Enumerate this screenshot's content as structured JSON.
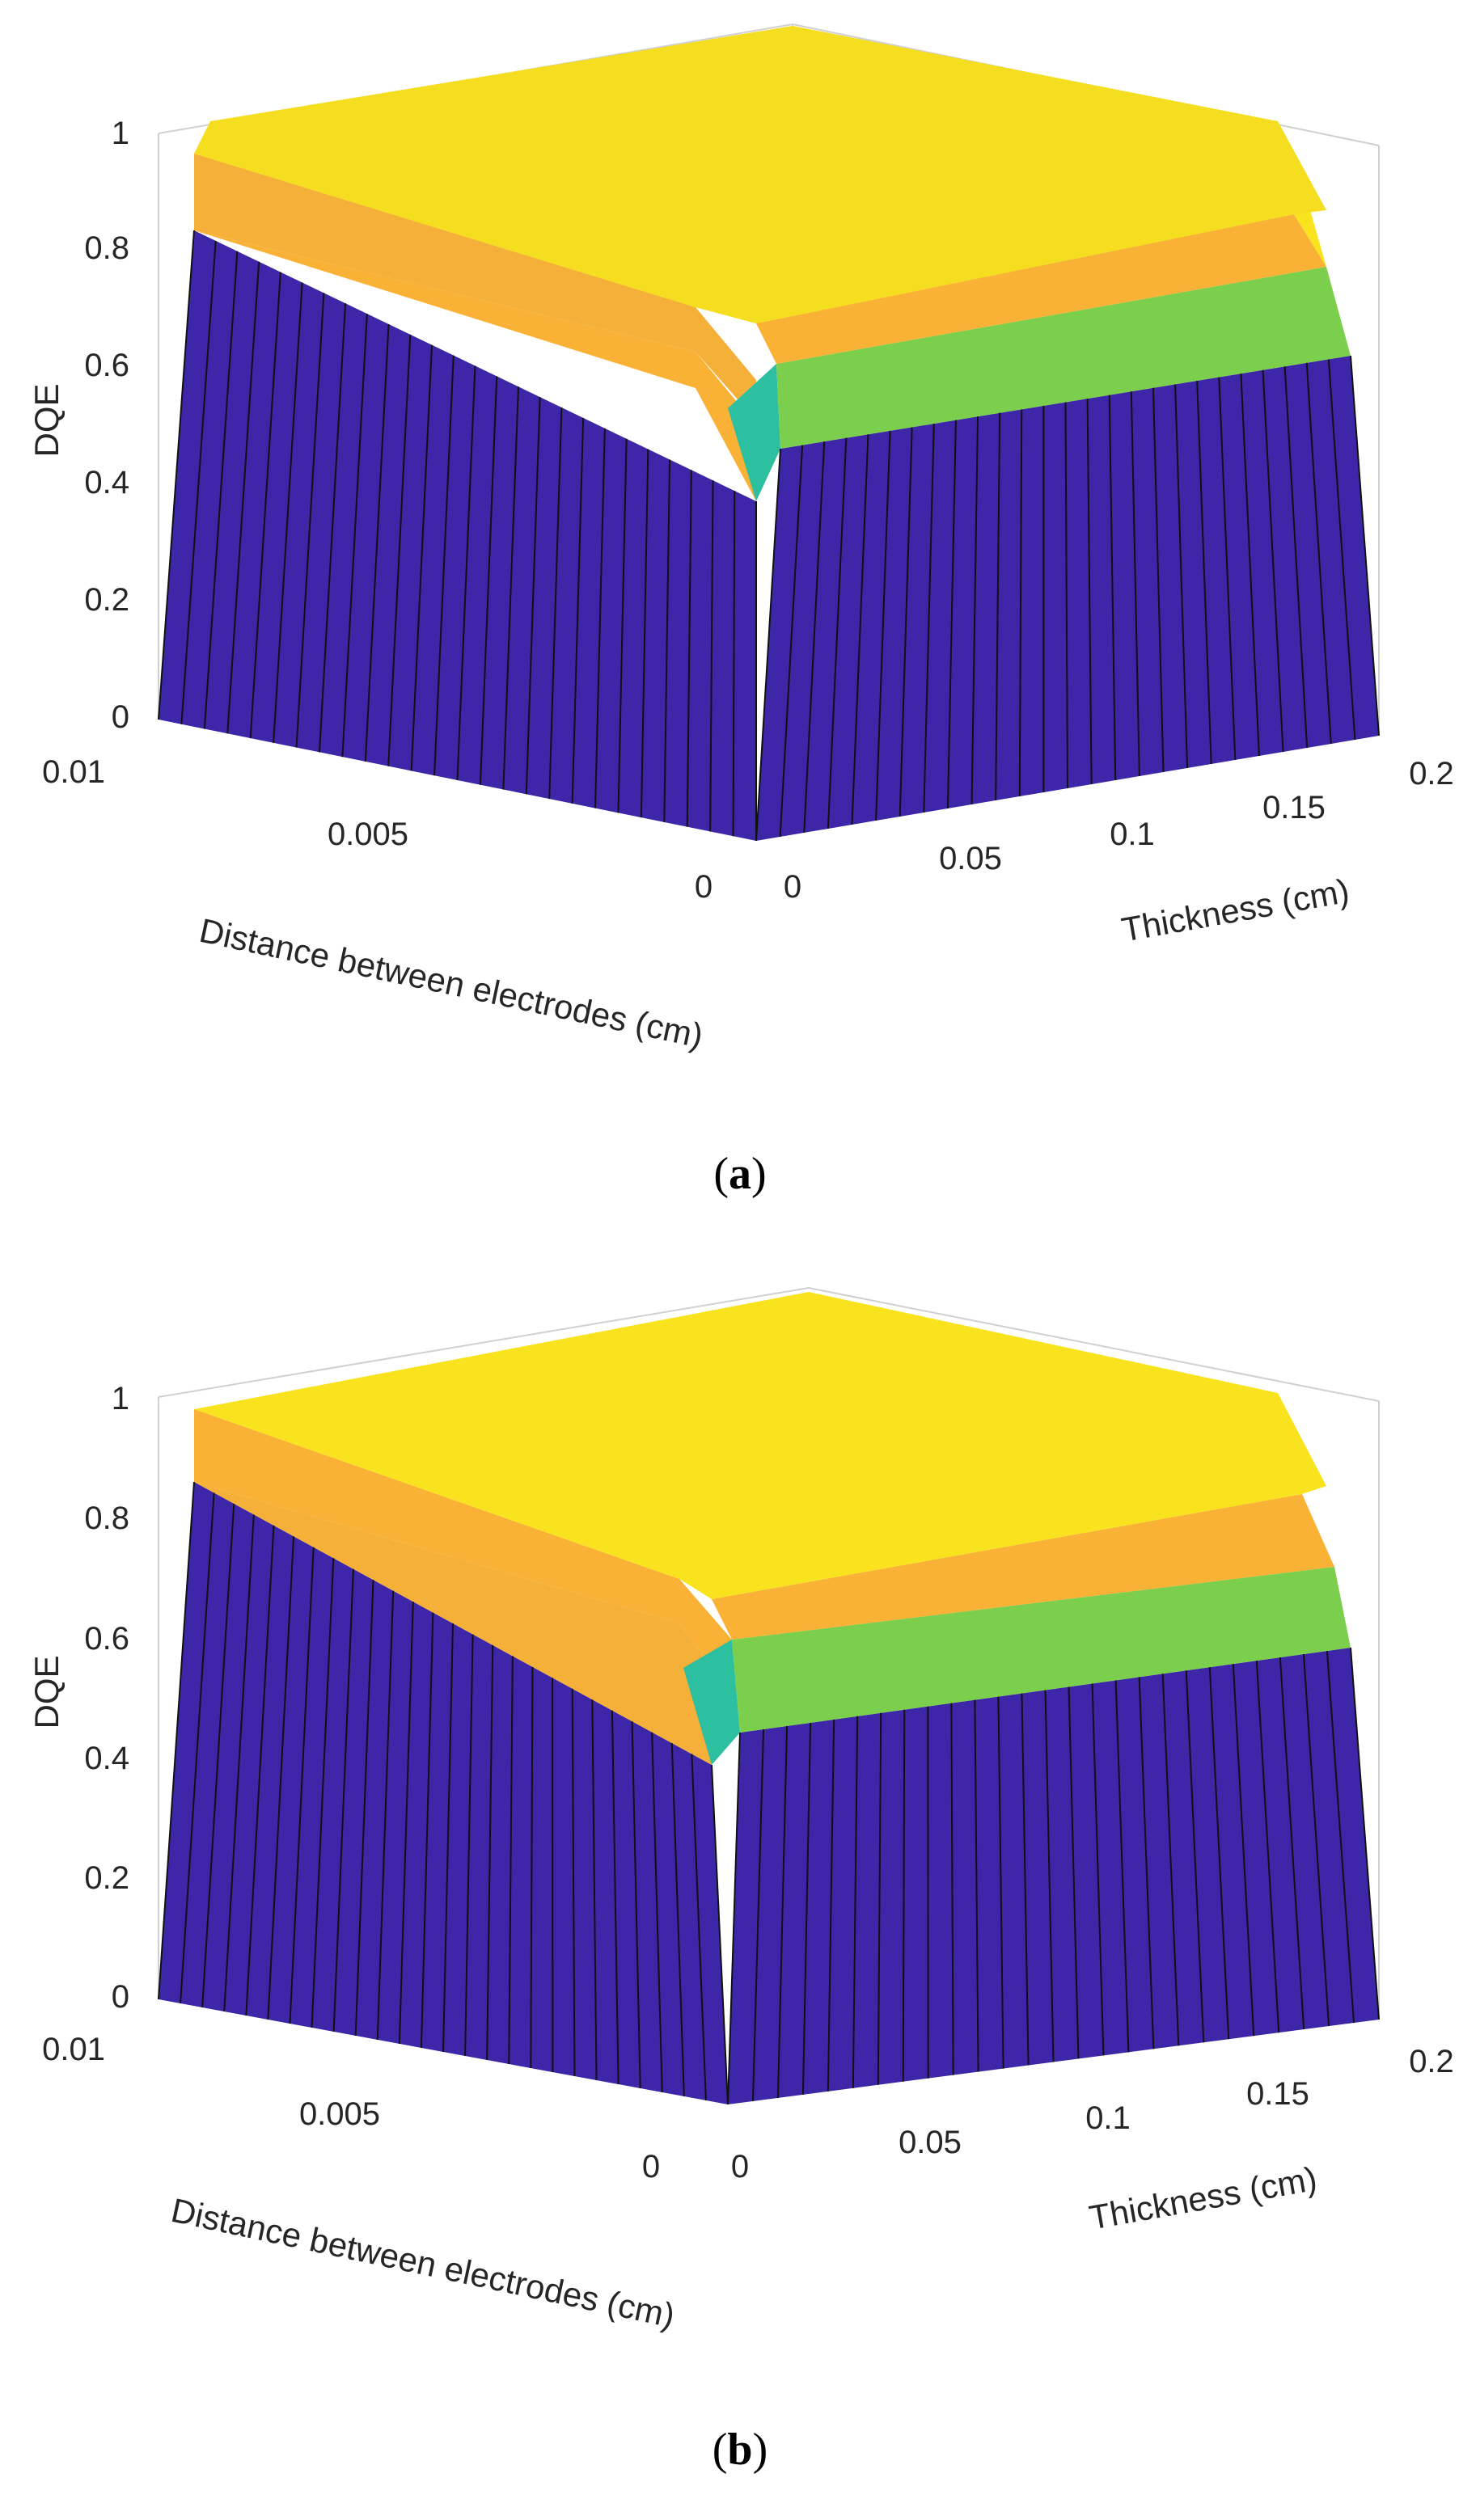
{
  "chart_data": [
    {
      "type": "surface",
      "panel_label": "a",
      "zlabel": "DQE",
      "xlabel": "Distance between electrodes (cm)",
      "ylabel": "Thickness (cm)",
      "x_ticks": [
        "0.01",
        "0.005",
        "0"
      ],
      "y_ticks": [
        "0",
        "0.05",
        "0.1",
        "0.15",
        "0.2"
      ],
      "z_ticks": [
        "0",
        "0.2",
        "0.4",
        "0.6",
        "0.8",
        "1"
      ],
      "xlim": [
        0,
        0.01
      ],
      "ylim": [
        0,
        0.2
      ],
      "zlim": [
        0,
        1
      ],
      "colormap": [
        "#3e26a8",
        "#2dc0a0",
        "#7ccf4d",
        "#f9b236",
        "#f9e31e"
      ],
      "surface_samples": {
        "max_value": 1.0,
        "front_edge_distance_axis": 0.83,
        "front_edge_thickness_axis": 0.62,
        "corner_min_value": 0.35
      }
    },
    {
      "type": "surface",
      "panel_label": "b",
      "zlabel": "DQE",
      "xlabel": "Distance between electrodes (cm)",
      "ylabel": "Thickness (cm)",
      "x_ticks": [
        "0.01",
        "0.005",
        "0"
      ],
      "y_ticks": [
        "0",
        "0.05",
        "0.1",
        "0.15",
        "0.2"
      ],
      "z_ticks": [
        "0",
        "0.2",
        "0.4",
        "0.6",
        "0.8",
        "1"
      ],
      "xlim": [
        0,
        0.01
      ],
      "ylim": [
        0,
        0.2
      ],
      "zlim": [
        0,
        1
      ],
      "colormap": [
        "#3e26a8",
        "#2dc0a0",
        "#7ccf4d",
        "#f9b236",
        "#f9e31e"
      ],
      "surface_samples": {
        "max_value": 1.0,
        "front_edge_distance_axis": 0.83,
        "front_edge_thickness_axis": 0.61,
        "corner_min_value": 0.38
      }
    }
  ],
  "captions": {
    "a": "a",
    "b": "b"
  }
}
